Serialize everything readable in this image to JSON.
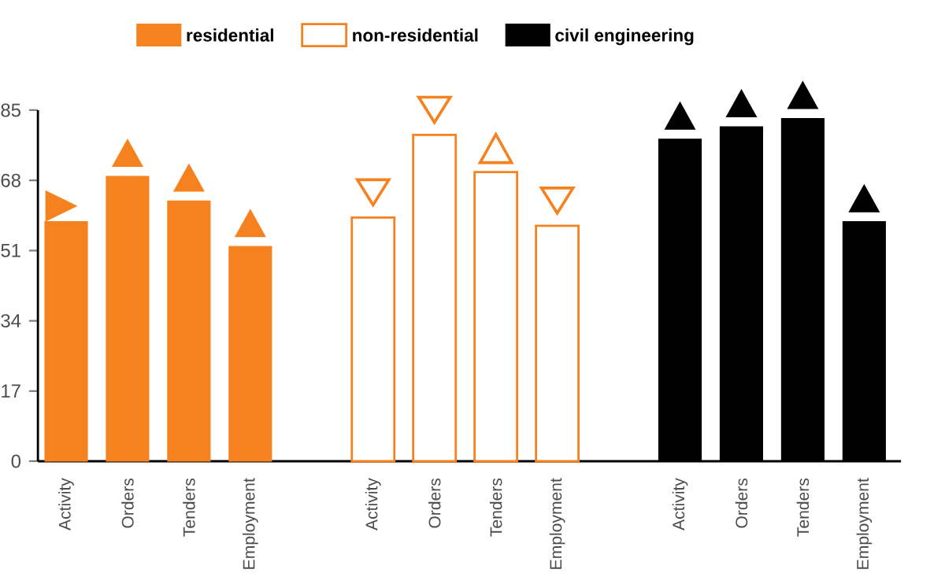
{
  "chart_data": {
    "type": "bar",
    "categories": [
      "Activity",
      "Orders",
      "Tenders",
      "Employment",
      null,
      "Activity",
      "Orders",
      "Tenders",
      "Employment",
      null,
      "Activity",
      "Orders",
      "Tenders",
      "Employment"
    ],
    "series": [
      {
        "name": "residential",
        "color": "#f5821f",
        "values": [
          58,
          69,
          63,
          52,
          null,
          null,
          null,
          null,
          null,
          null,
          null,
          null,
          null,
          null
        ]
      },
      {
        "name": "non-residential",
        "color": "#f5821f",
        "values": [
          null,
          null,
          null,
          null,
          null,
          59,
          79,
          70,
          57,
          null,
          null,
          null,
          null,
          null
        ]
      },
      {
        "name": "civil engineering",
        "color": "#000000",
        "values": [
          null,
          null,
          null,
          null,
          null,
          null,
          null,
          null,
          null,
          null,
          78,
          81,
          83,
          58
        ]
      }
    ],
    "ylim": [
      0,
      85
    ],
    "yticks": [
      0,
      17,
      34,
      51,
      68,
      85
    ],
    "legend": "top",
    "grid": false
  }
}
